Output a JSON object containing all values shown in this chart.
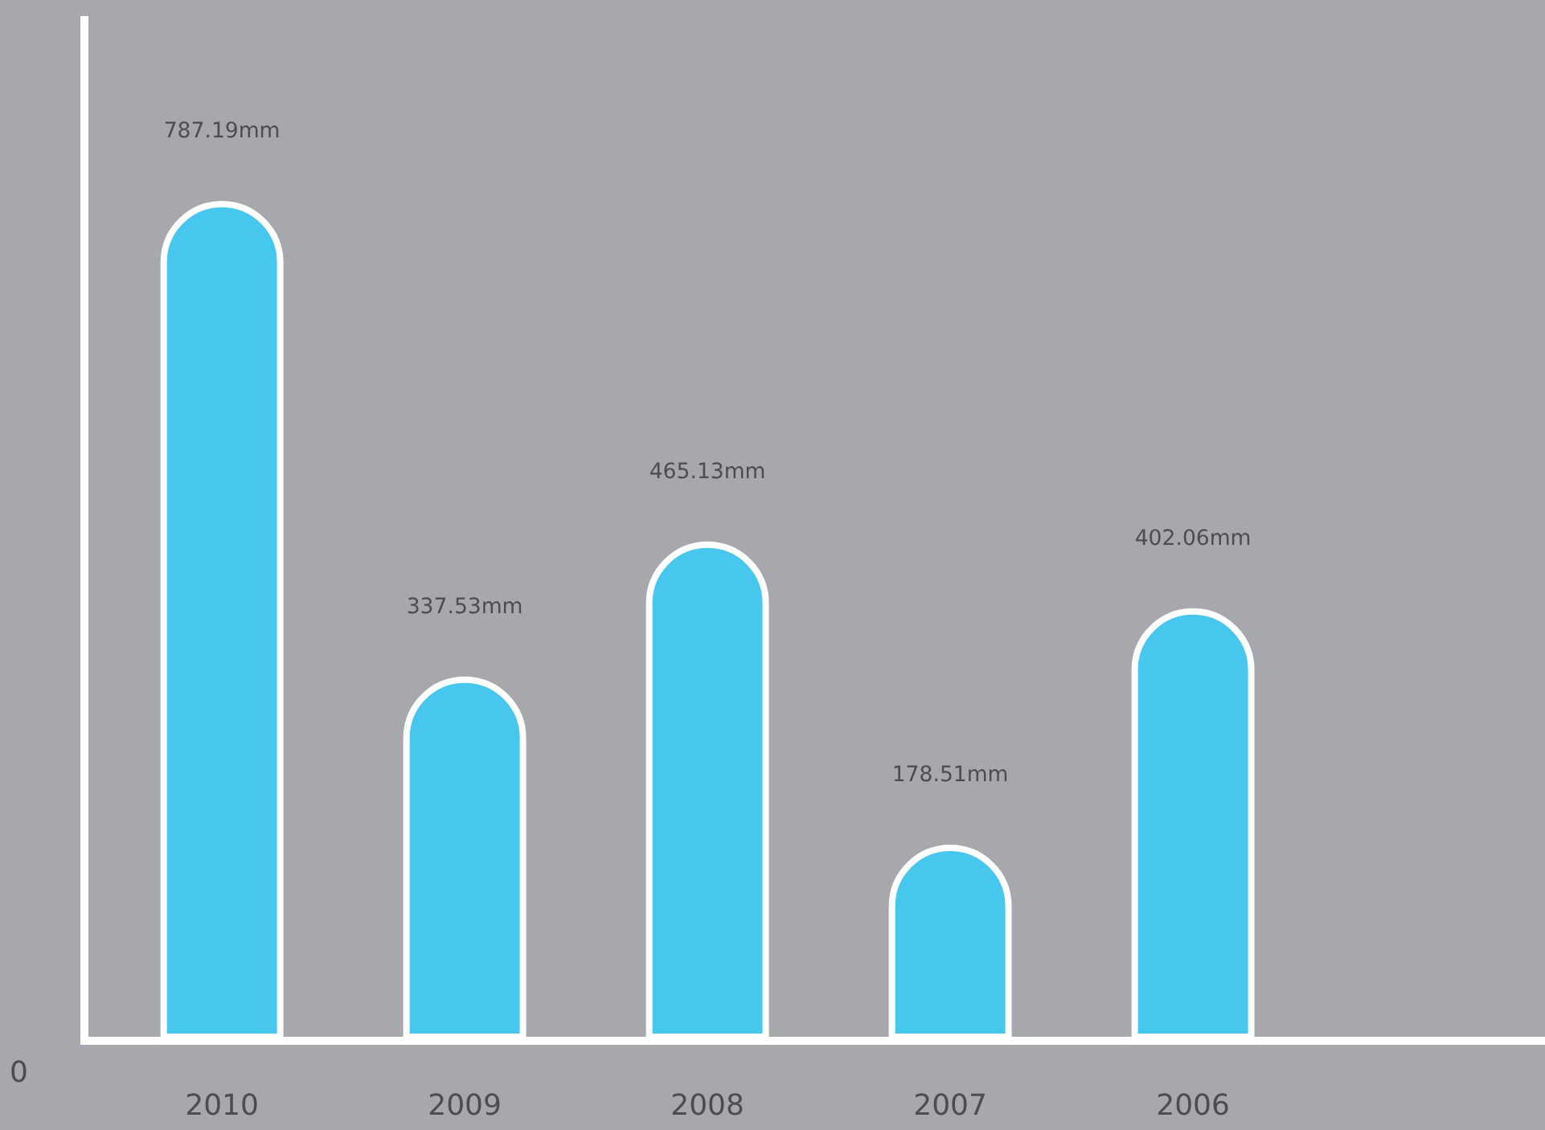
{
  "chart_data": {
    "type": "bar",
    "categories": [
      "2010",
      "2009",
      "2008",
      "2007",
      "2006"
    ],
    "values": [
      787.19,
      337.53,
      465.13,
      178.51,
      402.06
    ],
    "value_labels": [
      "787.19mm",
      "337.53mm",
      "465.13mm",
      "178.51mm",
      "402.06mm"
    ],
    "color": "#47c6ee",
    "ylim": [
      0,
      965
    ],
    "annotations": [
      "0"
    ],
    "legend": false
  }
}
